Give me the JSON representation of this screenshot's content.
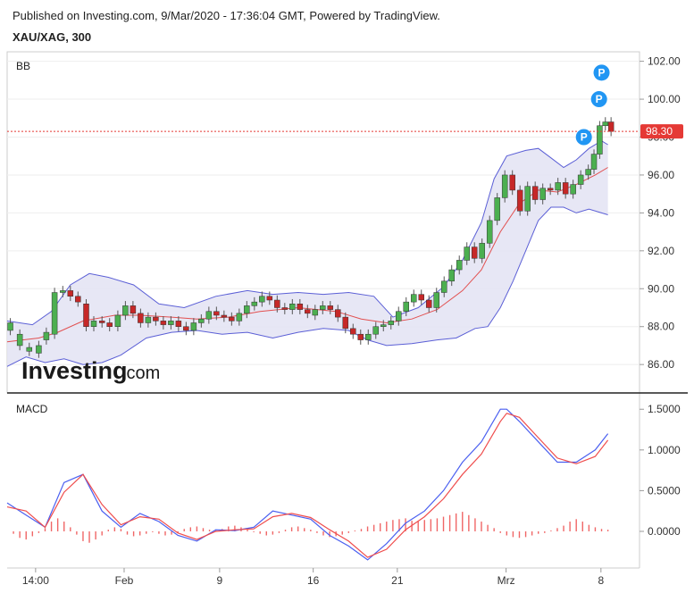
{
  "header": {
    "published": "Published on Investing.com, 9/Mar/2020 - 17:36:04 GMT, Powered by TradingView.",
    "symbol": "XAU/XAG, 300"
  },
  "watermark": {
    "brand": "Investing",
    "suffix": ".com"
  },
  "colors": {
    "up": "#4caf50",
    "down": "#c62828",
    "band": "#5b5fd6",
    "band_fill": "#e3e3f3",
    "basis": "#e25050",
    "macd": "#4a5ff0",
    "signal": "#ef4d4d",
    "hist": "#f06666",
    "price_tag": "#e53935",
    "pivot": "#2196f3"
  },
  "chart_data": [
    {
      "type": "candlestick",
      "label": "BB",
      "ylim": [
        84.5,
        102.5
      ],
      "yticks": [
        86,
        88,
        90,
        92,
        94,
        96,
        98,
        100,
        102
      ],
      "ytick_labels": [
        "86.00",
        "88.00",
        "90.00",
        "92.00",
        "94.00",
        "96.00",
        "98.00",
        "100.00",
        "102.00"
      ],
      "last_price": 98.3,
      "last_price_label": "98.30",
      "pivot_markers": [
        {
          "label": "P",
          "x": 0.912,
          "y": 98.0
        },
        {
          "label": "P",
          "x": 0.936,
          "y": 100.0
        },
        {
          "label": "P",
          "x": 0.94,
          "y": 101.4
        }
      ],
      "x_range": [
        0,
        1
      ],
      "xticks": [
        0.045,
        0.185,
        0.336,
        0.484,
        0.617,
        0.789,
        0.939
      ],
      "xtick_labels": [
        "14:00",
        "Feb",
        "9",
        "16",
        "21",
        "Mrz",
        "8"
      ],
      "basis_line": [
        [
          0,
          87.2
        ],
        [
          0.05,
          87.4
        ],
        [
          0.08,
          87.7
        ],
        [
          0.12,
          88.3
        ],
        [
          0.17,
          88.6
        ],
        [
          0.21,
          88.6
        ],
        [
          0.26,
          88.5
        ],
        [
          0.3,
          88.4
        ],
        [
          0.35,
          88.5
        ],
        [
          0.4,
          88.8
        ],
        [
          0.46,
          89.0
        ],
        [
          0.52,
          88.8
        ],
        [
          0.56,
          88.4
        ],
        [
          0.6,
          88.2
        ],
        [
          0.64,
          88.4
        ],
        [
          0.68,
          88.9
        ],
        [
          0.72,
          89.9
        ],
        [
          0.75,
          91.0
        ],
        [
          0.78,
          93.0
        ],
        [
          0.81,
          94.5
        ],
        [
          0.84,
          95.2
        ],
        [
          0.87,
          95.1
        ],
        [
          0.9,
          95.5
        ],
        [
          0.93,
          96.0
        ],
        [
          0.95,
          96.4
        ]
      ],
      "upper_band": [
        [
          0,
          88.3
        ],
        [
          0.04,
          88.1
        ],
        [
          0.07,
          88.8
        ],
        [
          0.1,
          90.2
        ],
        [
          0.13,
          90.8
        ],
        [
          0.16,
          90.6
        ],
        [
          0.2,
          90.2
        ],
        [
          0.24,
          89.2
        ],
        [
          0.28,
          89.0
        ],
        [
          0.33,
          89.6
        ],
        [
          0.38,
          89.9
        ],
        [
          0.42,
          89.7
        ],
        [
          0.46,
          89.8
        ],
        [
          0.5,
          89.7
        ],
        [
          0.54,
          89.8
        ],
        [
          0.58,
          89.6
        ],
        [
          0.61,
          88.5
        ],
        [
          0.65,
          89.0
        ],
        [
          0.69,
          90.1
        ],
        [
          0.72,
          91.5
        ],
        [
          0.75,
          93.5
        ],
        [
          0.77,
          95.8
        ],
        [
          0.79,
          97.0
        ],
        [
          0.82,
          97.3
        ],
        [
          0.84,
          97.4
        ],
        [
          0.86,
          96.9
        ],
        [
          0.88,
          96.4
        ],
        [
          0.9,
          96.8
        ],
        [
          0.92,
          97.4
        ],
        [
          0.94,
          97.8
        ],
        [
          0.95,
          97.6
        ]
      ],
      "lower_band": [
        [
          0,
          85.9
        ],
        [
          0.03,
          86.4
        ],
        [
          0.06,
          86.1
        ],
        [
          0.09,
          86.3
        ],
        [
          0.12,
          86.0
        ],
        [
          0.15,
          86.1
        ],
        [
          0.18,
          86.5
        ],
        [
          0.22,
          87.4
        ],
        [
          0.26,
          87.7
        ],
        [
          0.3,
          87.8
        ],
        [
          0.34,
          87.6
        ],
        [
          0.38,
          87.7
        ],
        [
          0.42,
          87.4
        ],
        [
          0.46,
          87.7
        ],
        [
          0.5,
          87.9
        ],
        [
          0.54,
          87.8
        ],
        [
          0.57,
          87.3
        ],
        [
          0.6,
          87.0
        ],
        [
          0.64,
          87.1
        ],
        [
          0.68,
          87.3
        ],
        [
          0.71,
          87.4
        ],
        [
          0.74,
          87.9
        ],
        [
          0.76,
          88.0
        ],
        [
          0.78,
          89.0
        ],
        [
          0.8,
          90.4
        ],
        [
          0.82,
          92.0
        ],
        [
          0.84,
          93.6
        ],
        [
          0.86,
          94.3
        ],
        [
          0.88,
          94.3
        ],
        [
          0.9,
          94.0
        ],
        [
          0.92,
          94.2
        ],
        [
          0.95,
          93.9
        ]
      ],
      "candles": [
        [
          0.005,
          87.8,
          88.2
        ],
        [
          0.02,
          87.0,
          87.6
        ],
        [
          0.035,
          86.7,
          86.9
        ],
        [
          0.05,
          86.6,
          87.0
        ],
        [
          0.062,
          87.3,
          87.7
        ],
        [
          0.075,
          87.6,
          89.8
        ],
        [
          0.088,
          89.8,
          89.9
        ],
        [
          0.1,
          89.9,
          89.6
        ],
        [
          0.112,
          89.6,
          89.3
        ],
        [
          0.125,
          89.2,
          88.0
        ],
        [
          0.137,
          88.0,
          88.3
        ],
        [
          0.15,
          88.3,
          88.2
        ],
        [
          0.162,
          88.2,
          88.0
        ],
        [
          0.175,
          88.0,
          88.6
        ],
        [
          0.187,
          88.6,
          89.1
        ],
        [
          0.199,
          89.1,
          88.7
        ],
        [
          0.211,
          88.7,
          88.2
        ],
        [
          0.223,
          88.2,
          88.5
        ],
        [
          0.235,
          88.5,
          88.3
        ],
        [
          0.247,
          88.3,
          88.1
        ],
        [
          0.259,
          88.1,
          88.3
        ],
        [
          0.271,
          88.3,
          88.0
        ],
        [
          0.283,
          88.0,
          87.8
        ],
        [
          0.295,
          87.8,
          88.2
        ],
        [
          0.307,
          88.2,
          88.4
        ],
        [
          0.319,
          88.4,
          88.8
        ],
        [
          0.331,
          88.8,
          88.6
        ],
        [
          0.343,
          88.6,
          88.5
        ],
        [
          0.355,
          88.5,
          88.3
        ],
        [
          0.367,
          88.3,
          88.7
        ],
        [
          0.379,
          88.7,
          89.1
        ],
        [
          0.391,
          89.1,
          89.3
        ],
        [
          0.403,
          89.3,
          89.6
        ],
        [
          0.415,
          89.6,
          89.4
        ],
        [
          0.427,
          89.4,
          89.0
        ],
        [
          0.439,
          89.0,
          88.9
        ],
        [
          0.451,
          88.9,
          89.2
        ],
        [
          0.463,
          89.2,
          88.9
        ],
        [
          0.475,
          88.9,
          88.7
        ],
        [
          0.487,
          88.6,
          88.9
        ],
        [
          0.499,
          88.9,
          89.1
        ],
        [
          0.511,
          89.1,
          88.9
        ],
        [
          0.523,
          88.9,
          88.5
        ],
        [
          0.535,
          88.5,
          87.9
        ],
        [
          0.547,
          87.9,
          87.6
        ],
        [
          0.559,
          87.6,
          87.3
        ],
        [
          0.571,
          87.3,
          87.6
        ],
        [
          0.583,
          87.6,
          88.0
        ],
        [
          0.595,
          88.0,
          88.1
        ],
        [
          0.607,
          88.1,
          88.3
        ],
        [
          0.619,
          88.3,
          88.8
        ],
        [
          0.631,
          88.8,
          89.3
        ],
        [
          0.643,
          89.3,
          89.7
        ],
        [
          0.655,
          89.7,
          89.4
        ],
        [
          0.667,
          89.4,
          89.0
        ],
        [
          0.679,
          89.0,
          89.8
        ],
        [
          0.691,
          89.8,
          90.4
        ],
        [
          0.703,
          90.4,
          91.0
        ],
        [
          0.715,
          91.0,
          91.5
        ],
        [
          0.727,
          91.5,
          92.2
        ],
        [
          0.739,
          92.2,
          91.6
        ],
        [
          0.751,
          91.6,
          92.4
        ],
        [
          0.763,
          92.4,
          93.6
        ],
        [
          0.775,
          93.6,
          94.8
        ],
        [
          0.787,
          94.8,
          96.0
        ],
        [
          0.799,
          96.0,
          95.2
        ],
        [
          0.811,
          95.2,
          94.1
        ],
        [
          0.823,
          94.1,
          95.4
        ],
        [
          0.835,
          95.4,
          94.7
        ],
        [
          0.847,
          94.7,
          95.3
        ],
        [
          0.859,
          95.3,
          95.2
        ],
        [
          0.871,
          95.2,
          95.6
        ],
        [
          0.883,
          95.6,
          95.0
        ],
        [
          0.895,
          95.0,
          95.5
        ],
        [
          0.907,
          95.5,
          96.0
        ],
        [
          0.919,
          96.0,
          96.3
        ],
        [
          0.928,
          96.3,
          97.1
        ],
        [
          0.937,
          97.1,
          98.6
        ],
        [
          0.946,
          98.6,
          98.8
        ],
        [
          0.955,
          98.8,
          98.3
        ]
      ]
    },
    {
      "type": "line",
      "label": "MACD",
      "ylim": [
        -0.45,
        1.7
      ],
      "yticks": [
        0,
        0.5,
        1.0,
        1.5
      ],
      "ytick_labels": [
        "0.0000",
        "0.5000",
        "1.0000",
        "1.5000"
      ],
      "series": [
        {
          "role": "macd",
          "x": [
            0,
            0.03,
            0.06,
            0.09,
            0.12,
            0.15,
            0.18,
            0.21,
            0.24,
            0.27,
            0.3,
            0.33,
            0.36,
            0.39,
            0.42,
            0.45,
            0.48,
            0.51,
            0.54,
            0.57,
            0.6,
            0.63,
            0.66,
            0.69,
            0.72,
            0.75,
            0.78,
            0.79,
            0.81,
            0.84,
            0.87,
            0.9,
            0.93,
            0.95
          ],
          "values": [
            0.35,
            0.2,
            0.05,
            0.6,
            0.7,
            0.25,
            0.05,
            0.22,
            0.12,
            -0.05,
            -0.12,
            0.02,
            0.01,
            0.05,
            0.25,
            0.2,
            0.15,
            -0.05,
            -0.18,
            -0.35,
            -0.15,
            0.1,
            0.25,
            0.5,
            0.85,
            1.1,
            1.5,
            1.5,
            1.35,
            1.1,
            0.85,
            0.85,
            1.0,
            1.2
          ]
        },
        {
          "role": "signal",
          "x": [
            0,
            0.03,
            0.06,
            0.09,
            0.12,
            0.15,
            0.18,
            0.21,
            0.24,
            0.27,
            0.3,
            0.33,
            0.36,
            0.39,
            0.42,
            0.45,
            0.48,
            0.51,
            0.54,
            0.57,
            0.6,
            0.63,
            0.66,
            0.69,
            0.72,
            0.75,
            0.78,
            0.79,
            0.81,
            0.84,
            0.87,
            0.9,
            0.93,
            0.95
          ],
          "values": [
            0.3,
            0.25,
            0.05,
            0.48,
            0.7,
            0.33,
            0.08,
            0.18,
            0.15,
            -0.02,
            -0.1,
            0.0,
            0.02,
            0.03,
            0.18,
            0.22,
            0.17,
            0.02,
            -0.12,
            -0.32,
            -0.22,
            0.02,
            0.18,
            0.4,
            0.7,
            0.95,
            1.35,
            1.45,
            1.4,
            1.15,
            0.9,
            0.83,
            0.92,
            1.12
          ]
        }
      ],
      "histogram": {
        "x": [
          0.01,
          0.02,
          0.03,
          0.04,
          0.05,
          0.06,
          0.07,
          0.08,
          0.09,
          0.1,
          0.11,
          0.12,
          0.13,
          0.14,
          0.15,
          0.16,
          0.17,
          0.18,
          0.19,
          0.2,
          0.21,
          0.22,
          0.23,
          0.24,
          0.25,
          0.26,
          0.27,
          0.28,
          0.29,
          0.3,
          0.31,
          0.32,
          0.33,
          0.34,
          0.35,
          0.36,
          0.37,
          0.38,
          0.39,
          0.4,
          0.41,
          0.42,
          0.43,
          0.44,
          0.45,
          0.46,
          0.47,
          0.48,
          0.49,
          0.5,
          0.51,
          0.52,
          0.53,
          0.54,
          0.55,
          0.56,
          0.57,
          0.58,
          0.59,
          0.6,
          0.61,
          0.62,
          0.63,
          0.64,
          0.65,
          0.66,
          0.67,
          0.68,
          0.69,
          0.7,
          0.71,
          0.72,
          0.73,
          0.74,
          0.75,
          0.76,
          0.77,
          0.78,
          0.79,
          0.8,
          0.81,
          0.82,
          0.83,
          0.84,
          0.85,
          0.86,
          0.87,
          0.88,
          0.89,
          0.9,
          0.91,
          0.92,
          0.93,
          0.94,
          0.95
        ],
        "values": [
          -0.03,
          -0.08,
          -0.1,
          -0.06,
          -0.02,
          0.04,
          0.12,
          0.16,
          0.12,
          0.05,
          -0.04,
          -0.12,
          -0.14,
          -0.1,
          -0.05,
          0.02,
          0.05,
          0.03,
          -0.04,
          -0.06,
          -0.05,
          -0.03,
          -0.01,
          -0.03,
          -0.05,
          -0.04,
          -0.02,
          0.03,
          0.05,
          0.06,
          0.04,
          0.02,
          0.01,
          0.03,
          0.06,
          0.07,
          0.05,
          0.02,
          -0.01,
          -0.03,
          -0.05,
          -0.04,
          -0.02,
          0.02,
          0.05,
          0.06,
          0.04,
          0.02,
          -0.02,
          -0.05,
          -0.07,
          -0.06,
          -0.04,
          -0.02,
          0.01,
          0.03,
          0.06,
          0.08,
          0.1,
          0.12,
          0.14,
          0.15,
          0.16,
          0.13,
          0.12,
          0.14,
          0.15,
          0.16,
          0.18,
          0.2,
          0.22,
          0.24,
          0.2,
          0.16,
          0.12,
          0.08,
          0.04,
          -0.02,
          -0.05,
          -0.07,
          -0.08,
          -0.07,
          -0.05,
          -0.03,
          -0.02,
          0.01,
          0.04,
          0.07,
          0.12,
          0.15,
          0.12,
          0.08,
          0.05,
          0.03,
          0.02
        ]
      }
    }
  ]
}
